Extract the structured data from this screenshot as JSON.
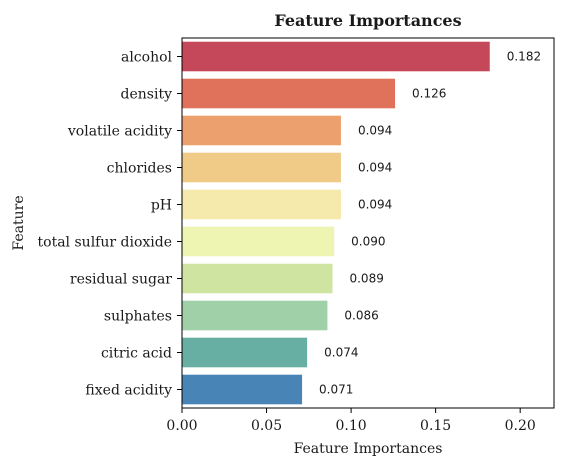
{
  "chart_data": {
    "type": "bar",
    "orientation": "horizontal",
    "title": "Feature Importances",
    "xlabel": "Feature Importances",
    "ylabel": "Feature",
    "xlim": [
      0,
      0.22
    ],
    "xticks": [
      0.0,
      0.05,
      0.1,
      0.15,
      0.2
    ],
    "xtick_labels": [
      "0.00",
      "0.05",
      "0.10",
      "0.15",
      "0.20"
    ],
    "grid": false,
    "categories": [
      "alcohol",
      "density",
      "volatile acidity",
      "chlorides",
      "pH",
      "total sulfur dioxide",
      "residual sugar",
      "sulphates",
      "citric acid",
      "fixed acidity"
    ],
    "values": [
      0.182,
      0.126,
      0.094,
      0.094,
      0.094,
      0.09,
      0.089,
      0.086,
      0.074,
      0.071
    ],
    "value_labels": [
      "0.182",
      "0.126",
      "0.094",
      "0.094",
      "0.094",
      "0.090",
      "0.089",
      "0.086",
      "0.074",
      "0.071"
    ],
    "colors": [
      "#c5485a",
      "#e0725b",
      "#eca06d",
      "#f0cb87",
      "#f5e9ab",
      "#eef4b2",
      "#cfe4a0",
      "#a0d0a8",
      "#67aea3",
      "#4884b5"
    ]
  }
}
